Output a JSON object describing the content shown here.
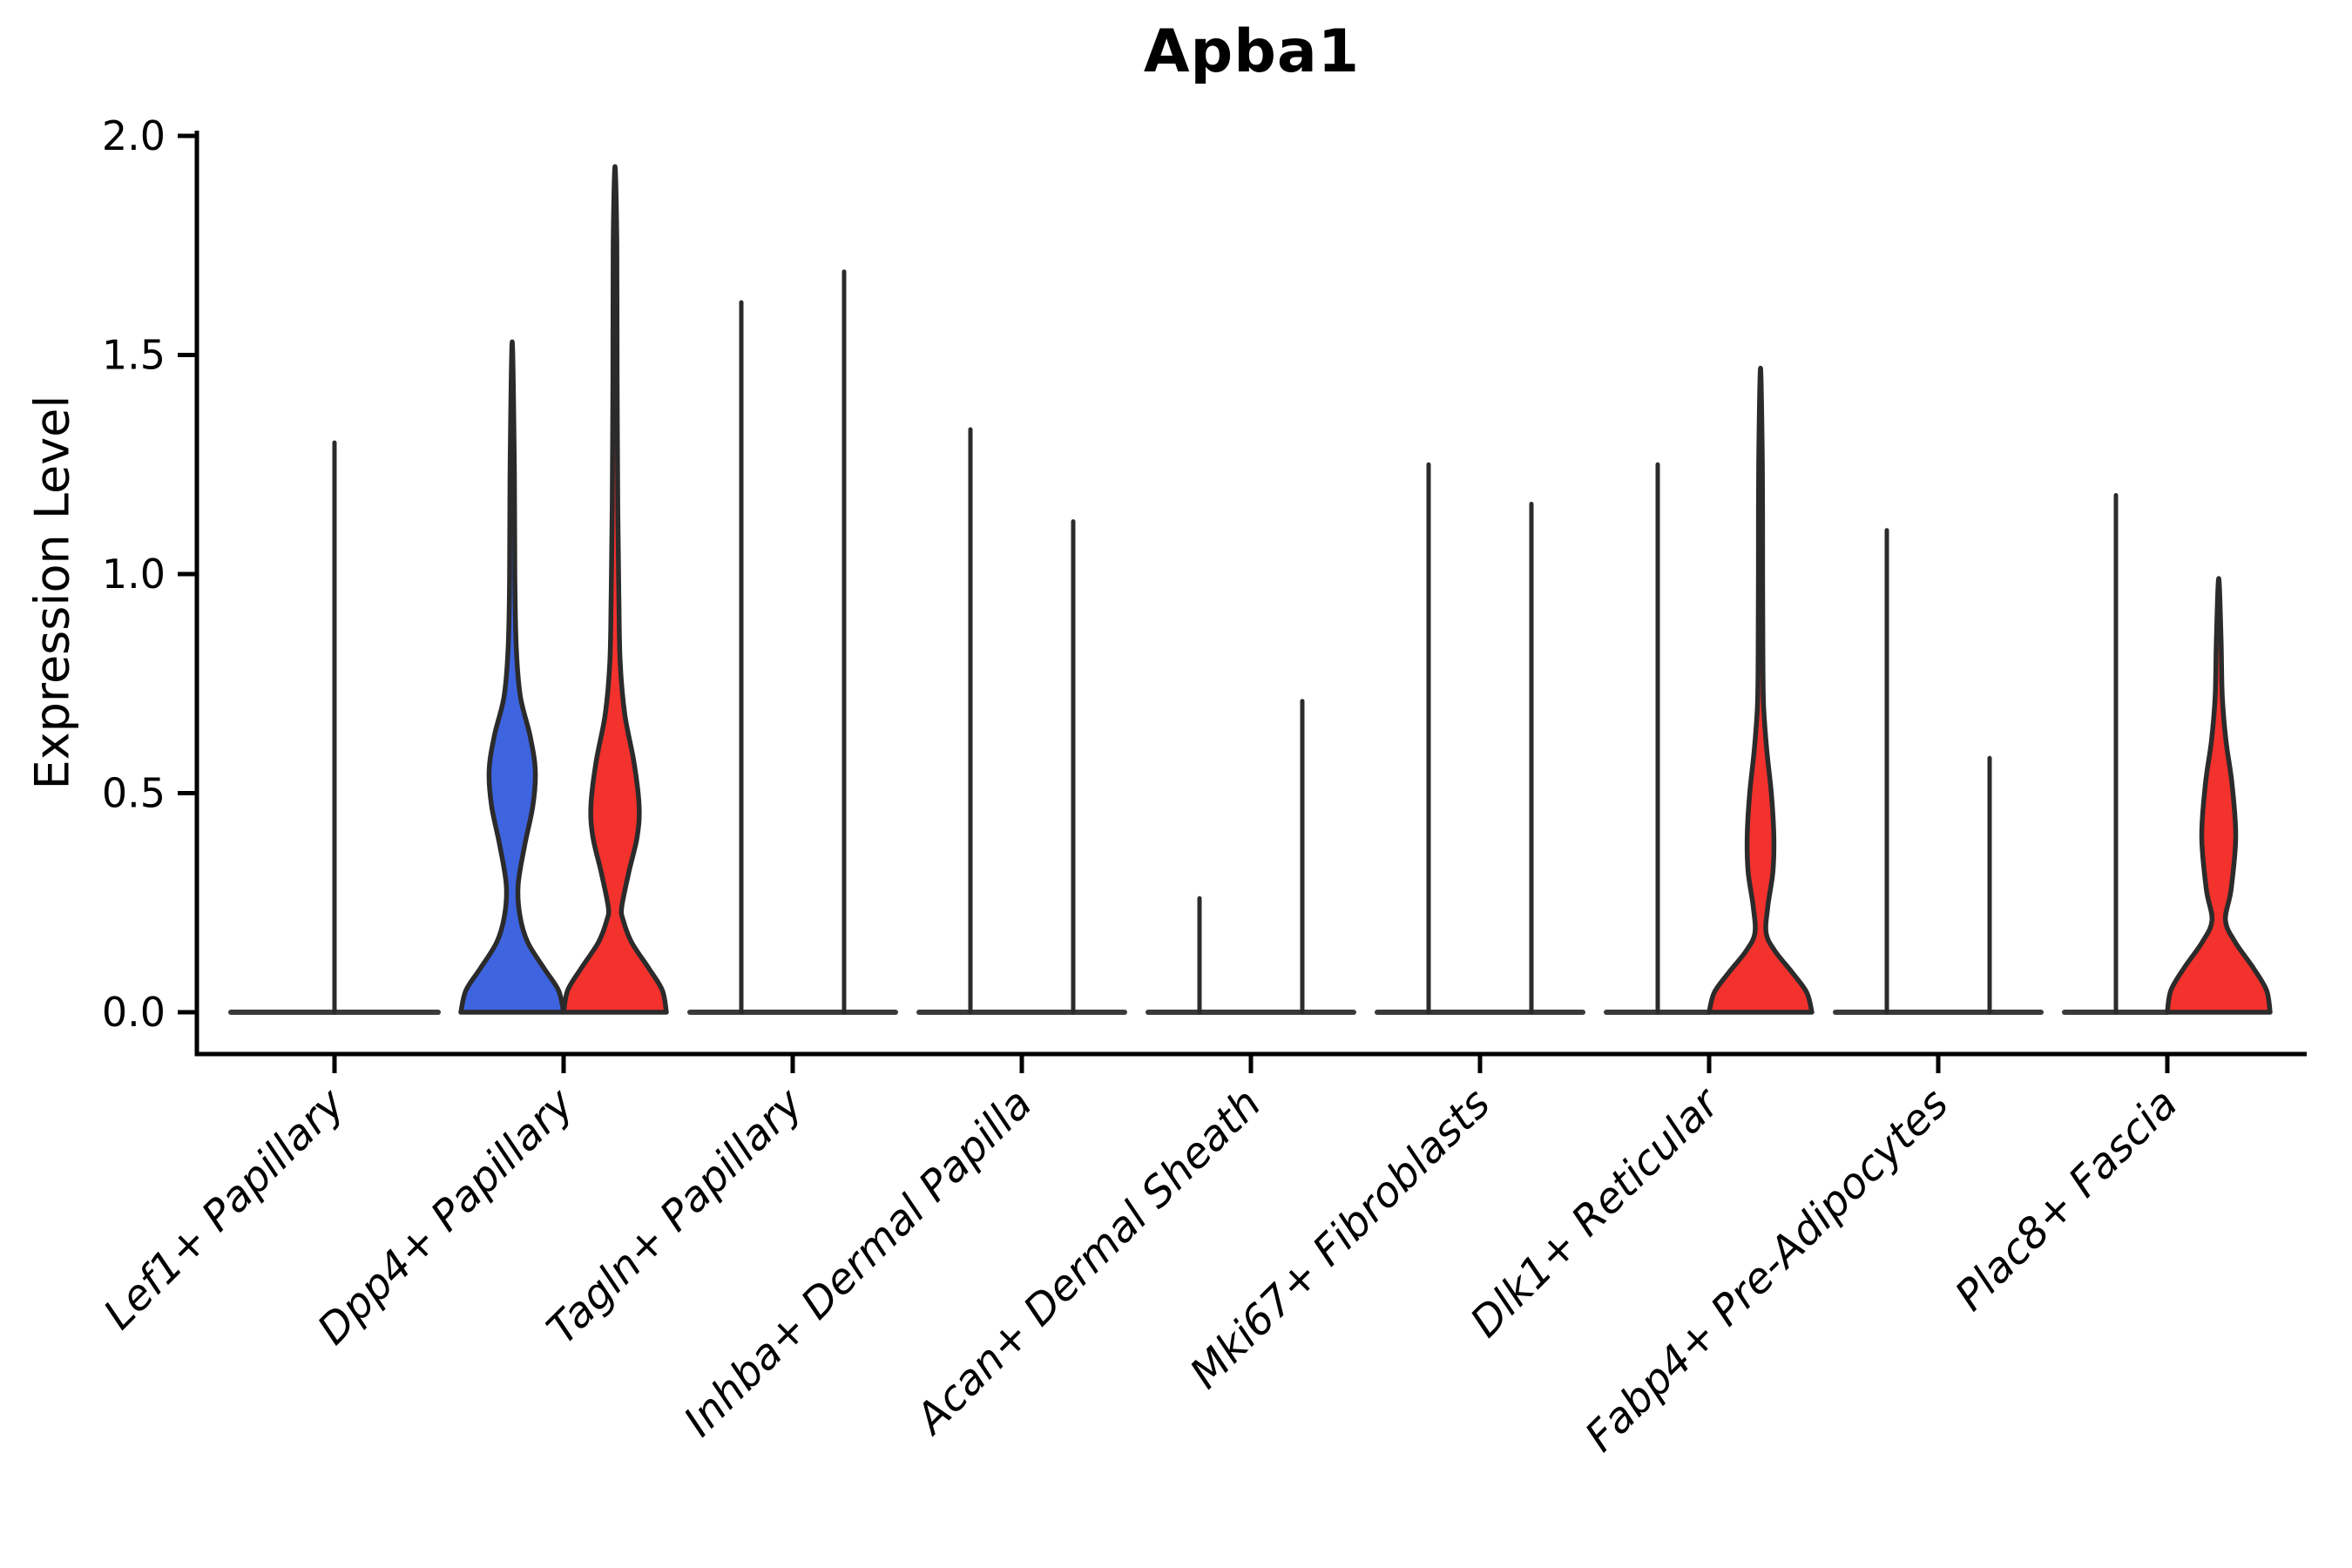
{
  "chart_data": {
    "type": "violin",
    "title": "Apba1",
    "ylabel": "Expression Level",
    "xlabel": "",
    "ylim": [
      0.0,
      2.0
    ],
    "ytick_labels": [
      "0.0",
      "0.5",
      "1.0",
      "1.5",
      "2.0"
    ],
    "ytick_values": [
      0.0,
      0.5,
      1.0,
      1.5,
      2.0
    ],
    "grid": "off",
    "legend": "none",
    "split_colors": {
      "blue": "#3E64E0",
      "red": "#F3312D"
    },
    "outline_color": "#2B2B2B",
    "baseline_color": "#3A3A3A",
    "axis_color": "#000000",
    "x_tick_label_angle_deg": 45,
    "groups": [
      {
        "category": "Lef1+ Papillary",
        "violins": [
          {
            "split": "single",
            "shape": "flat",
            "max": 1.3,
            "color": "none"
          }
        ]
      },
      {
        "category": "Dpp4+ Papillary",
        "violins": [
          {
            "split": "left",
            "shape": "curved",
            "max": 1.53,
            "color": "#3E64E0",
            "profile": [
              [
                0,
                1.0
              ],
              [
                0.05,
                0.9
              ],
              [
                0.1,
                0.62
              ],
              [
                0.16,
                0.3
              ],
              [
                0.22,
                0.15
              ],
              [
                0.29,
                0.115
              ],
              [
                0.38,
                0.24
              ],
              [
                0.47,
                0.4
              ],
              [
                0.55,
                0.45
              ],
              [
                0.63,
                0.35
              ],
              [
                0.72,
                0.16
              ],
              [
                0.83,
                0.08
              ],
              [
                1.0,
                0.05
              ],
              [
                1.25,
                0.04
              ],
              [
                1.53,
                0.0
              ]
            ]
          },
          {
            "split": "right",
            "shape": "curved",
            "max": 1.93,
            "color": "#F3312D",
            "profile": [
              [
                0,
                1.0
              ],
              [
                0.05,
                0.92
              ],
              [
                0.1,
                0.66
              ],
              [
                0.16,
                0.32
              ],
              [
                0.21,
                0.16
              ],
              [
                0.24,
                0.13
              ],
              [
                0.32,
                0.27
              ],
              [
                0.4,
                0.43
              ],
              [
                0.47,
                0.47
              ],
              [
                0.57,
                0.37
              ],
              [
                0.68,
                0.19
              ],
              [
                0.8,
                0.1
              ],
              [
                0.95,
                0.075
              ],
              [
                1.15,
                0.055
              ],
              [
                1.45,
                0.04
              ],
              [
                1.75,
                0.035
              ],
              [
                1.93,
                0.0
              ]
            ]
          }
        ]
      },
      {
        "category": "Tagln+ Papillary",
        "violins": [
          {
            "split": "left",
            "shape": "flat",
            "max": 1.62,
            "color": "none"
          },
          {
            "split": "right",
            "shape": "flat",
            "max": 1.69,
            "color": "none"
          }
        ]
      },
      {
        "category": "Inhba+ Dermal Papilla",
        "violins": [
          {
            "split": "left",
            "shape": "flat",
            "max": 1.33,
            "color": "none"
          },
          {
            "split": "right",
            "shape": "flat",
            "max": 1.12,
            "color": "none"
          }
        ]
      },
      {
        "category": "Acan+ Dermal Sheath",
        "violins": [
          {
            "split": "left",
            "shape": "flat",
            "max": 0.26,
            "color": "none"
          },
          {
            "split": "right",
            "shape": "flat",
            "max": 0.71,
            "color": "none"
          }
        ]
      },
      {
        "category": "Mki67+ Fibroblasts",
        "violins": [
          {
            "split": "left",
            "shape": "flat",
            "max": 1.25,
            "color": "none"
          },
          {
            "split": "right",
            "shape": "flat",
            "max": 1.16,
            "color": "none"
          }
        ]
      },
      {
        "category": "Dlk1+ Reticular",
        "violins": [
          {
            "split": "left",
            "shape": "flat",
            "max": 1.25,
            "color": "none"
          },
          {
            "split": "right",
            "shape": "curved",
            "max": 1.47,
            "color": "#F3312D",
            "profile": [
              [
                0,
                1.0
              ],
              [
                0.045,
                0.9
              ],
              [
                0.09,
                0.62
              ],
              [
                0.14,
                0.28
              ],
              [
                0.18,
                0.11
              ],
              [
                0.24,
                0.14
              ],
              [
                0.32,
                0.24
              ],
              [
                0.4,
                0.26
              ],
              [
                0.5,
                0.21
              ],
              [
                0.6,
                0.12
              ],
              [
                0.7,
                0.06
              ],
              [
                0.82,
                0.045
              ],
              [
                1.0,
                0.04
              ],
              [
                1.25,
                0.035
              ],
              [
                1.47,
                0.0
              ]
            ]
          }
        ]
      },
      {
        "category": "Fabp4+ Pre-Adipocytes",
        "violins": [
          {
            "split": "left",
            "shape": "flat",
            "max": 1.1,
            "color": "none"
          },
          {
            "split": "right",
            "shape": "flat",
            "max": 0.58,
            "color": "none"
          }
        ]
      },
      {
        "category": "Plac8+ Fascia",
        "violins": [
          {
            "split": "left",
            "shape": "flat",
            "max": 1.18,
            "color": "none"
          },
          {
            "split": "right",
            "shape": "curved",
            "max": 0.99,
            "color": "#F3312D",
            "profile": [
              [
                0,
                1.0
              ],
              [
                0.05,
                0.93
              ],
              [
                0.1,
                0.68
              ],
              [
                0.16,
                0.32
              ],
              [
                0.21,
                0.13
              ],
              [
                0.28,
                0.24
              ],
              [
                0.4,
                0.33
              ],
              [
                0.52,
                0.26
              ],
              [
                0.62,
                0.14
              ],
              [
                0.72,
                0.07
              ],
              [
                0.85,
                0.045
              ],
              [
                0.99,
                0.0
              ]
            ]
          }
        ]
      }
    ]
  }
}
